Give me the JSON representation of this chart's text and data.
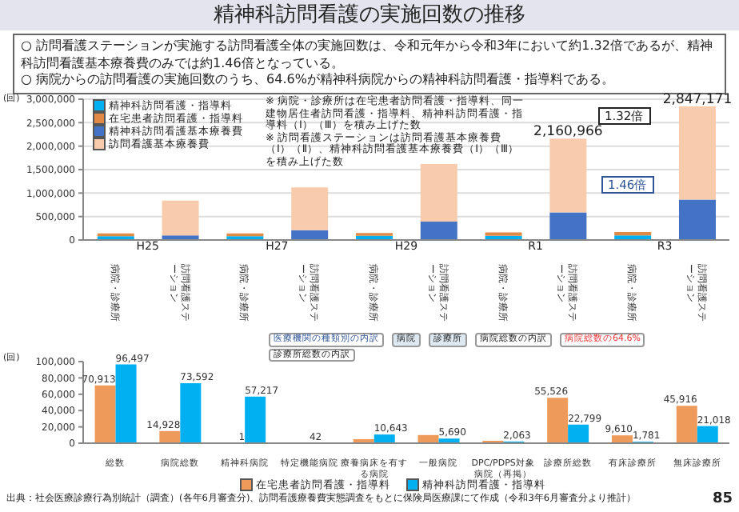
{
  "chart_data": [
    {
      "type": "bar",
      "title": "精神科訪問看護の実施回数の推移",
      "subtitle": "○ 訪問看護ステーションが実施する訪問看護全体の実施回数は、令和元年から令和3年において約1.32倍であるが、精神科訪問看護基本療養費のみでは約1.46倍となっている。\n○ 病院からの訪問看護の実施回数のうち、64.6%が精神科病院からの精神科訪問看護・指導料である。",
      "ylabel": "(回)",
      "categories": [
        "病院・診療所",
        "訪問看護ステーション",
        "病院・診療所",
        "訪問看護ステーション",
        "病院・診療所",
        "訪問看護ステーション",
        "病院・診療所",
        "訪問看護ステーション",
        "病院・診療所",
        "訪問看護ステーション"
      ],
      "stacked": true,
      "series": [
        {
          "name": "精神科訪問看護・指導料",
          "color": "#00b0f0",
          "values": [
            80000,
            0,
            80000,
            0,
            90000,
            0,
            90000,
            0,
            100000,
            0
          ]
        },
        {
          "name": "在宅患者訪問看護・指導料",
          "color": "#e08a45",
          "values": [
            60000,
            0,
            60000,
            0,
            60000,
            0,
            70000,
            0,
            70000,
            0
          ]
        },
        {
          "name": "精神科訪問看護基本療養費",
          "color": "#4472c4",
          "values": [
            0,
            100000,
            0,
            210000,
            0,
            390000,
            0,
            590000,
            0,
            860000
          ]
        },
        {
          "name": "訪問看護基本療養費",
          "color": "#f8cbad",
          "values": [
            0,
            740000,
            0,
            910000,
            0,
            1230000,
            0,
            1570966,
            0,
            1987171
          ]
        }
      ],
      "totals": [
        null,
        null,
        null,
        null,
        null,
        null,
        null,
        "2,160,966",
        null,
        "2,847,171"
      ],
      "ylim": [
        0,
        3000000
      ],
      "yticks": [
        {
          "value": 0,
          "label": "0"
        },
        {
          "value": 500000,
          "label": "500,000"
        },
        {
          "value": 1000000,
          "label": "1,000,000"
        },
        {
          "value": 1500000,
          "label": "1,500,000"
        },
        {
          "value": 2000000,
          "label": "2,000,000"
        },
        {
          "value": 2500000,
          "label": "2,500,000"
        },
        {
          "value": 3000000,
          "label": "3,000,000"
        }
      ],
      "grid": "y",
      "legend": "top left",
      "annotations": [
        "H25",
        "H27",
        "H29",
        "R1",
        "R3",
        "1.32倍",
        "1.46倍",
        "※ 病院・診療所は在宅患者訪問看護・指導料、同一建物居住者訪問看護・指導料、精神科訪問看護・指導料（Ⅰ）（Ⅲ）を積み上げた数",
        "※ 訪問看護ステーションは訪問看護基本療養費（Ⅰ）（Ⅱ）、精神科訪問看護基本療養費（Ⅰ）（Ⅲ）を積み上げた数"
      ]
    },
    {
      "type": "bar",
      "ylabel": "(回)",
      "categories": [
        "総数",
        "病院総数",
        "精神科病院",
        "特定機能病院",
        "療養病床を有する病院",
        "一般病院",
        "DPC/PDPS対象病院（再掲）",
        "診療所総数",
        "有床診療所",
        "無床診療所"
      ],
      "series": [
        {
          "name": "在宅患者訪問看護・指導料",
          "color": "#ee9a5a",
          "values": [
            70913,
            14928,
            1,
            0,
            5000,
            10000,
            3000,
            55526,
            9610,
            45916
          ],
          "value_labels": [
            "70,913",
            "14,928",
            "1",
            null,
            null,
            null,
            null,
            "55,526",
            "9,610",
            "45,916"
          ]
        },
        {
          "name": "精神科訪問看護・指導料",
          "color": "#00b0f0",
          "values": [
            96497,
            73592,
            57217,
            42,
            10643,
            5690,
            2063,
            22799,
            1781,
            21018
          ],
          "value_labels": [
            "96,497",
            "73,592",
            "57,217",
            "42",
            "10,643",
            "5,690",
            "2,063",
            "22,799",
            "1,781",
            "21,018"
          ]
        }
      ],
      "ylim": [
        0,
        100000
      ],
      "yticks": [
        {
          "value": 0,
          "label": "0"
        },
        {
          "value": 20000,
          "label": "20,000"
        },
        {
          "value": 40000,
          "label": "40,000"
        },
        {
          "value": 60000,
          "label": "60,000"
        },
        {
          "value": 80000,
          "label": "80,000"
        },
        {
          "value": 100000,
          "label": "100,000"
        }
      ],
      "legend": "bottom",
      "annotations": [
        "医療機関の種類別の内訳",
        "病院",
        "診療所",
        "病院総数の内訳",
        "病院総数の64.6%",
        "診療所総数の内訳",
        "出典：社会医療診療行為別統計（調査）(各年6月審査分)、訪問看護療養費実態調査をもとに保険局医療課にて作成（令和3年6月審査分より推計）",
        "85"
      ]
    }
  ]
}
